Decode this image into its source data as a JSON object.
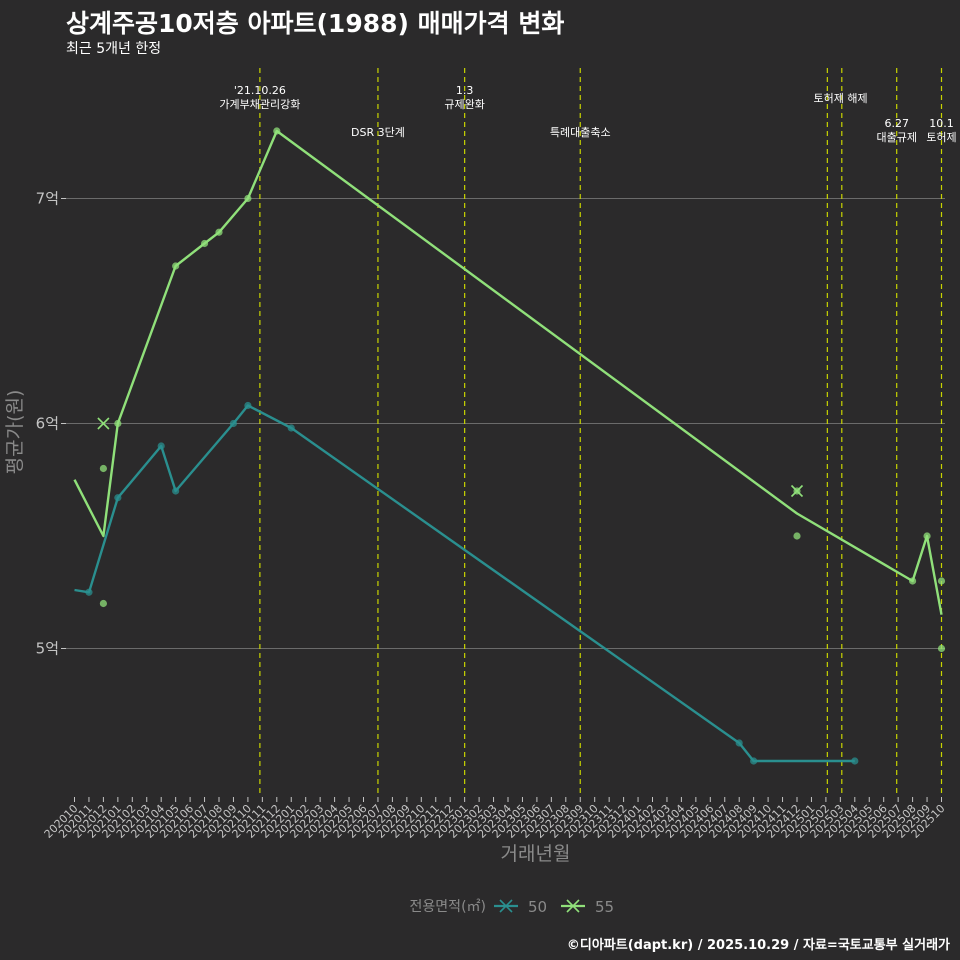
{
  "header": {
    "title": "상계주공10저층 아파트(1988) 매매가격 변화",
    "subtitle": "최근 5개년 한정"
  },
  "footer": {
    "caption": "©디아파트(dapt.kr) / 2025.10.29 / 자료=국토교통부 실거래가"
  },
  "chart_data": {
    "type": "line",
    "title": "상계주공10저층 아파트(1988) 매매가격 변화",
    "subtitle": "최근 5개년 한정",
    "xlabel": "거래년월",
    "ylabel": "평균가(원)",
    "ylim": [
      4.35,
      7.45
    ],
    "y_ticks": [
      {
        "value": 5,
        "label": "5억"
      },
      {
        "value": 6,
        "label": "6억"
      },
      {
        "value": 7,
        "label": "7억"
      }
    ],
    "x_start": "2020-10",
    "x_end": "2025-10",
    "legend": {
      "title": "전용면적(㎡)",
      "position": "bottom"
    },
    "colors": {
      "background": "#2b2a2b",
      "grid": "#6b6b6b",
      "event_line": "#c8d400",
      "axis_text": "#c4c4c4",
      "axis_title": "#8a8a8a",
      "50": "#2a8f8f",
      "55": "#90e07a"
    },
    "series": [
      {
        "name": "50",
        "color": "#2a8f8f",
        "line": [
          {
            "x": "2020-10",
            "y": 5.26
          },
          {
            "x": "2020-11",
            "y": 5.25
          },
          {
            "x": "2021-01",
            "y": 5.67
          },
          {
            "x": "2021-04",
            "y": 5.9
          },
          {
            "x": "2021-05",
            "y": 5.7
          },
          {
            "x": "2021-09",
            "y": 6.0
          },
          {
            "x": "2021-10",
            "y": 6.08
          },
          {
            "x": "2022-01",
            "y": 5.98
          },
          {
            "x": "2024-08",
            "y": 4.58
          },
          {
            "x": "2024-09",
            "y": 4.5
          },
          {
            "x": "2025-04",
            "y": 4.5
          }
        ],
        "points": [
          {
            "x": "2020-11",
            "y": 5.25
          },
          {
            "x": "2021-01",
            "y": 5.67
          },
          {
            "x": "2021-04",
            "y": 5.9
          },
          {
            "x": "2021-05",
            "y": 5.7
          },
          {
            "x": "2021-09",
            "y": 6.0
          },
          {
            "x": "2021-10",
            "y": 6.08
          },
          {
            "x": "2022-01",
            "y": 5.98
          },
          {
            "x": "2024-08",
            "y": 4.58
          },
          {
            "x": "2024-09",
            "y": 4.5
          },
          {
            "x": "2025-04",
            "y": 4.5
          }
        ],
        "x_marks": []
      },
      {
        "name": "55",
        "color": "#90e07a",
        "line": [
          {
            "x": "2020-10",
            "y": 5.75
          },
          {
            "x": "2020-12",
            "y": 5.5
          },
          {
            "x": "2021-01",
            "y": 6.0
          },
          {
            "x": "2021-05",
            "y": 6.7
          },
          {
            "x": "2021-07",
            "y": 6.8
          },
          {
            "x": "2021-08",
            "y": 6.85
          },
          {
            "x": "2021-10",
            "y": 7.0
          },
          {
            "x": "2021-12",
            "y": 7.3
          },
          {
            "x": "2024-12",
            "y": 5.6
          },
          {
            "x": "2025-08",
            "y": 5.3
          },
          {
            "x": "2025-09",
            "y": 5.5
          },
          {
            "x": "2025-10",
            "y": 5.15
          }
        ],
        "points": [
          {
            "x": "2020-12",
            "y": 5.8
          },
          {
            "x": "2020-12",
            "y": 5.2
          },
          {
            "x": "2021-01",
            "y": 6.0
          },
          {
            "x": "2021-05",
            "y": 6.7
          },
          {
            "x": "2021-07",
            "y": 6.8
          },
          {
            "x": "2021-08",
            "y": 6.85
          },
          {
            "x": "2021-10",
            "y": 7.0
          },
          {
            "x": "2021-12",
            "y": 7.3
          },
          {
            "x": "2024-12",
            "y": 5.7
          },
          {
            "x": "2024-12",
            "y": 5.5
          },
          {
            "x": "2025-08",
            "y": 5.3
          },
          {
            "x": "2025-09",
            "y": 5.5
          },
          {
            "x": "2025-10",
            "y": 5.3
          },
          {
            "x": "2025-10",
            "y": 5.0
          }
        ],
        "x_marks": [
          {
            "x": "2020-12",
            "y": 6.0
          },
          {
            "x": "2024-12",
            "y": 5.7
          }
        ]
      }
    ],
    "events": [
      {
        "x": "2021-10.83",
        "lines": [
          "'21.10.26",
          "가계부채관리강화"
        ],
        "row": 1
      },
      {
        "x": "2022-07",
        "lines": [
          "DSR 3단계"
        ],
        "row": 2
      },
      {
        "x": "2023-01",
        "lines": [
          "1.3",
          "규제완화"
        ],
        "row": 1
      },
      {
        "x": "2023-09",
        "lines": [
          "특례대출축소"
        ],
        "row": 2
      },
      {
        "x": "2025-02.1",
        "lines": [],
        "row": 1
      },
      {
        "x": "2025-03.1",
        "lines": [],
        "row": 1
      },
      {
        "x": "2025-06.9",
        "lines": [
          "6.27",
          "대출규제"
        ],
        "row": 3
      },
      {
        "x": "2025-10",
        "lines": [
          "10.1",
          "토허제"
        ],
        "row": 3
      }
    ],
    "event_texts": [
      {
        "x": "2025-02.6",
        "lines": [
          "토허제 해제"
        ],
        "row": 1
      }
    ]
  }
}
